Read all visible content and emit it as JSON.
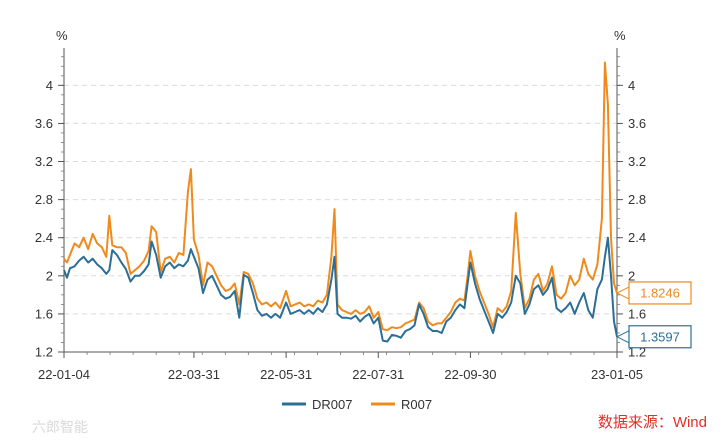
{
  "chart_data": {
    "type": "line",
    "y_unit_left": "%",
    "y_unit_right": "%",
    "ylim": [
      1.2,
      4.35
    ],
    "y_ticks": [
      "1.2",
      "1.6",
      "2",
      "2.4",
      "2.8",
      "3.2",
      "3.6",
      "4"
    ],
    "x_ticks": [
      "22-01-04",
      "22-03-31",
      "22-05-31",
      "22-07-31",
      "22-09-30",
      "23-01-05"
    ],
    "x_tick_positions": [
      "2022-01-04",
      "2022-03-31",
      "2022-05-31",
      "2022-07-31",
      "2022-09-30",
      "2023-01-05"
    ],
    "grid": true,
    "legend_position": "bottom",
    "series": [
      {
        "name": "DR007",
        "color": "#2b6f97",
        "last_value_label": "1.3597",
        "points": [
          [
            "2022-01-04",
            2.06
          ],
          [
            "2022-01-06",
            1.98
          ],
          [
            "2022-01-08",
            2.08
          ],
          [
            "2022-01-11",
            2.1
          ],
          [
            "2022-01-14",
            2.16
          ],
          [
            "2022-01-17",
            2.2
          ],
          [
            "2022-01-20",
            2.14
          ],
          [
            "2022-01-23",
            2.18
          ],
          [
            "2022-01-26",
            2.12
          ],
          [
            "2022-01-29",
            2.08
          ],
          [
            "2022-02-01",
            2.02
          ],
          [
            "2022-02-03",
            2.06
          ],
          [
            "2022-02-05",
            2.27
          ],
          [
            "2022-02-08",
            2.22
          ],
          [
            "2022-02-11",
            2.14
          ],
          [
            "2022-02-14",
            2.07
          ],
          [
            "2022-02-17",
            1.94
          ],
          [
            "2022-02-20",
            2.0
          ],
          [
            "2022-02-23",
            2.0
          ],
          [
            "2022-02-26",
            2.05
          ],
          [
            "2022-03-01",
            2.12
          ],
          [
            "2022-03-03",
            2.36
          ],
          [
            "2022-03-06",
            2.22
          ],
          [
            "2022-03-09",
            1.98
          ],
          [
            "2022-03-12",
            2.1
          ],
          [
            "2022-03-15",
            2.14
          ],
          [
            "2022-03-18",
            2.08
          ],
          [
            "2022-03-21",
            2.12
          ],
          [
            "2022-03-24",
            2.1
          ],
          [
            "2022-03-27",
            2.16
          ],
          [
            "2022-03-29",
            2.28
          ],
          [
            "2022-03-31",
            2.2
          ],
          [
            "2022-04-03",
            2.08
          ],
          [
            "2022-04-06",
            1.82
          ],
          [
            "2022-04-09",
            1.96
          ],
          [
            "2022-04-12",
            2.0
          ],
          [
            "2022-04-15",
            1.9
          ],
          [
            "2022-04-18",
            1.8
          ],
          [
            "2022-04-21",
            1.76
          ],
          [
            "2022-04-24",
            1.78
          ],
          [
            "2022-04-27",
            1.84
          ],
          [
            "2022-04-30",
            1.56
          ],
          [
            "2022-05-03",
            2.01
          ],
          [
            "2022-05-06",
            1.98
          ],
          [
            "2022-05-09",
            1.82
          ],
          [
            "2022-05-12",
            1.64
          ],
          [
            "2022-05-15",
            1.58
          ],
          [
            "2022-05-18",
            1.6
          ],
          [
            "2022-05-21",
            1.56
          ],
          [
            "2022-05-24",
            1.6
          ],
          [
            "2022-05-27",
            1.56
          ],
          [
            "2022-05-31",
            1.72
          ],
          [
            "2022-06-03",
            1.6
          ],
          [
            "2022-06-06",
            1.62
          ],
          [
            "2022-06-09",
            1.64
          ],
          [
            "2022-06-12",
            1.6
          ],
          [
            "2022-06-15",
            1.64
          ],
          [
            "2022-06-18",
            1.6
          ],
          [
            "2022-06-21",
            1.66
          ],
          [
            "2022-06-24",
            1.62
          ],
          [
            "2022-06-27",
            1.7
          ],
          [
            "2022-06-30",
            1.96
          ],
          [
            "2022-07-02",
            2.2
          ],
          [
            "2022-07-04",
            1.6
          ],
          [
            "2022-07-07",
            1.56
          ],
          [
            "2022-07-10",
            1.56
          ],
          [
            "2022-07-13",
            1.55
          ],
          [
            "2022-07-16",
            1.58
          ],
          [
            "2022-07-19",
            1.52
          ],
          [
            "2022-07-22",
            1.57
          ],
          [
            "2022-07-25",
            1.6
          ],
          [
            "2022-07-28",
            1.5
          ],
          [
            "2022-07-31",
            1.56
          ],
          [
            "2022-08-03",
            1.32
          ],
          [
            "2022-08-06",
            1.31
          ],
          [
            "2022-08-09",
            1.38
          ],
          [
            "2022-08-12",
            1.37
          ],
          [
            "2022-08-15",
            1.35
          ],
          [
            "2022-08-18",
            1.42
          ],
          [
            "2022-08-21",
            1.44
          ],
          [
            "2022-08-24",
            1.48
          ],
          [
            "2022-08-27",
            1.7
          ],
          [
            "2022-08-30",
            1.6
          ],
          [
            "2022-09-02",
            1.46
          ],
          [
            "2022-09-05",
            1.42
          ],
          [
            "2022-09-08",
            1.42
          ],
          [
            "2022-09-11",
            1.4
          ],
          [
            "2022-09-14",
            1.52
          ],
          [
            "2022-09-17",
            1.56
          ],
          [
            "2022-09-20",
            1.64
          ],
          [
            "2022-09-23",
            1.7
          ],
          [
            "2022-09-26",
            1.66
          ],
          [
            "2022-09-28",
            1.9
          ],
          [
            "2022-09-30",
            2.14
          ],
          [
            "2022-10-03",
            1.92
          ],
          [
            "2022-10-06",
            1.76
          ],
          [
            "2022-10-09",
            1.64
          ],
          [
            "2022-10-12",
            1.52
          ],
          [
            "2022-10-15",
            1.4
          ],
          [
            "2022-10-18",
            1.6
          ],
          [
            "2022-10-21",
            1.56
          ],
          [
            "2022-10-24",
            1.62
          ],
          [
            "2022-10-27",
            1.72
          ],
          [
            "2022-10-30",
            2.0
          ],
          [
            "2022-11-02",
            1.92
          ],
          [
            "2022-11-05",
            1.6
          ],
          [
            "2022-11-08",
            1.7
          ],
          [
            "2022-11-11",
            1.86
          ],
          [
            "2022-11-14",
            1.9
          ],
          [
            "2022-11-17",
            1.8
          ],
          [
            "2022-11-20",
            1.86
          ],
          [
            "2022-11-23",
            1.98
          ],
          [
            "2022-11-26",
            1.66
          ],
          [
            "2022-11-29",
            1.62
          ],
          [
            "2022-12-02",
            1.66
          ],
          [
            "2022-12-05",
            1.72
          ],
          [
            "2022-12-08",
            1.6
          ],
          [
            "2022-12-11",
            1.72
          ],
          [
            "2022-12-14",
            1.82
          ],
          [
            "2022-12-17",
            1.64
          ],
          [
            "2022-12-20",
            1.56
          ],
          [
            "2022-12-23",
            1.86
          ],
          [
            "2022-12-26",
            1.96
          ],
          [
            "2022-12-28",
            2.2
          ],
          [
            "2022-12-30",
            2.4
          ],
          [
            "2023-01-01",
            2.0
          ],
          [
            "2023-01-03",
            1.52
          ],
          [
            "2023-01-05",
            1.36
          ]
        ]
      },
      {
        "name": "R007",
        "color": "#ef8a1c",
        "last_value_label": "1.8246",
        "points": [
          [
            "2022-01-04",
            2.18
          ],
          [
            "2022-01-06",
            2.14
          ],
          [
            "2022-01-08",
            2.22
          ],
          [
            "2022-01-11",
            2.34
          ],
          [
            "2022-01-14",
            2.3
          ],
          [
            "2022-01-17",
            2.4
          ],
          [
            "2022-01-20",
            2.28
          ],
          [
            "2022-01-23",
            2.44
          ],
          [
            "2022-01-26",
            2.34
          ],
          [
            "2022-01-29",
            2.3
          ],
          [
            "2022-02-01",
            2.2
          ],
          [
            "2022-02-03",
            2.63
          ],
          [
            "2022-02-05",
            2.32
          ],
          [
            "2022-02-08",
            2.3
          ],
          [
            "2022-02-11",
            2.3
          ],
          [
            "2022-02-14",
            2.24
          ],
          [
            "2022-02-17",
            2.02
          ],
          [
            "2022-02-20",
            2.06
          ],
          [
            "2022-02-23",
            2.1
          ],
          [
            "2022-02-26",
            2.16
          ],
          [
            "2022-03-01",
            2.26
          ],
          [
            "2022-03-03",
            2.52
          ],
          [
            "2022-03-06",
            2.46
          ],
          [
            "2022-03-09",
            2.04
          ],
          [
            "2022-03-12",
            2.18
          ],
          [
            "2022-03-15",
            2.2
          ],
          [
            "2022-03-18",
            2.14
          ],
          [
            "2022-03-21",
            2.24
          ],
          [
            "2022-03-24",
            2.22
          ],
          [
            "2022-03-27",
            2.88
          ],
          [
            "2022-03-29",
            3.12
          ],
          [
            "2022-03-31",
            2.38
          ],
          [
            "2022-04-03",
            2.22
          ],
          [
            "2022-04-06",
            1.9
          ],
          [
            "2022-04-09",
            2.14
          ],
          [
            "2022-04-12",
            2.1
          ],
          [
            "2022-04-15",
            2.0
          ],
          [
            "2022-04-18",
            1.9
          ],
          [
            "2022-04-21",
            1.84
          ],
          [
            "2022-04-24",
            1.86
          ],
          [
            "2022-04-27",
            1.92
          ],
          [
            "2022-04-30",
            1.7
          ],
          [
            "2022-05-03",
            2.04
          ],
          [
            "2022-05-06",
            2.02
          ],
          [
            "2022-05-09",
            1.92
          ],
          [
            "2022-05-12",
            1.76
          ],
          [
            "2022-05-15",
            1.7
          ],
          [
            "2022-05-18",
            1.72
          ],
          [
            "2022-05-21",
            1.68
          ],
          [
            "2022-05-24",
            1.72
          ],
          [
            "2022-05-27",
            1.66
          ],
          [
            "2022-05-31",
            1.84
          ],
          [
            "2022-06-03",
            1.68
          ],
          [
            "2022-06-06",
            1.7
          ],
          [
            "2022-06-09",
            1.72
          ],
          [
            "2022-06-12",
            1.68
          ],
          [
            "2022-06-15",
            1.7
          ],
          [
            "2022-06-18",
            1.68
          ],
          [
            "2022-06-21",
            1.74
          ],
          [
            "2022-06-24",
            1.72
          ],
          [
            "2022-06-27",
            1.8
          ],
          [
            "2022-06-30",
            2.2
          ],
          [
            "2022-07-02",
            2.7
          ],
          [
            "2022-07-04",
            1.7
          ],
          [
            "2022-07-07",
            1.64
          ],
          [
            "2022-07-10",
            1.62
          ],
          [
            "2022-07-13",
            1.6
          ],
          [
            "2022-07-16",
            1.64
          ],
          [
            "2022-07-19",
            1.6
          ],
          [
            "2022-07-22",
            1.62
          ],
          [
            "2022-07-25",
            1.68
          ],
          [
            "2022-07-28",
            1.56
          ],
          [
            "2022-07-31",
            1.62
          ],
          [
            "2022-08-03",
            1.44
          ],
          [
            "2022-08-06",
            1.43
          ],
          [
            "2022-08-09",
            1.46
          ],
          [
            "2022-08-12",
            1.45
          ],
          [
            "2022-08-15",
            1.46
          ],
          [
            "2022-08-18",
            1.5
          ],
          [
            "2022-08-21",
            1.52
          ],
          [
            "2022-08-24",
            1.54
          ],
          [
            "2022-08-27",
            1.72
          ],
          [
            "2022-08-30",
            1.66
          ],
          [
            "2022-09-02",
            1.52
          ],
          [
            "2022-09-05",
            1.48
          ],
          [
            "2022-09-08",
            1.5
          ],
          [
            "2022-09-11",
            1.5
          ],
          [
            "2022-09-14",
            1.56
          ],
          [
            "2022-09-17",
            1.62
          ],
          [
            "2022-09-20",
            1.72
          ],
          [
            "2022-09-23",
            1.76
          ],
          [
            "2022-09-26",
            1.74
          ],
          [
            "2022-09-28",
            1.98
          ],
          [
            "2022-09-30",
            2.26
          ],
          [
            "2022-10-03",
            2.0
          ],
          [
            "2022-10-06",
            1.84
          ],
          [
            "2022-10-09",
            1.72
          ],
          [
            "2022-10-12",
            1.6
          ],
          [
            "2022-10-15",
            1.46
          ],
          [
            "2022-10-18",
            1.66
          ],
          [
            "2022-10-21",
            1.62
          ],
          [
            "2022-10-24",
            1.68
          ],
          [
            "2022-10-27",
            1.84
          ],
          [
            "2022-10-30",
            2.66
          ],
          [
            "2022-11-02",
            2.02
          ],
          [
            "2022-11-05",
            1.66
          ],
          [
            "2022-11-08",
            1.76
          ],
          [
            "2022-11-11",
            1.96
          ],
          [
            "2022-11-14",
            2.02
          ],
          [
            "2022-11-17",
            1.84
          ],
          [
            "2022-11-20",
            1.92
          ],
          [
            "2022-11-23",
            2.1
          ],
          [
            "2022-11-26",
            1.8
          ],
          [
            "2022-11-29",
            1.76
          ],
          [
            "2022-12-02",
            1.82
          ],
          [
            "2022-12-05",
            2.0
          ],
          [
            "2022-12-08",
            1.9
          ],
          [
            "2022-12-11",
            1.96
          ],
          [
            "2022-12-14",
            2.18
          ],
          [
            "2022-12-17",
            2.02
          ],
          [
            "2022-12-20",
            1.96
          ],
          [
            "2022-12-23",
            2.12
          ],
          [
            "2022-12-26",
            2.6
          ],
          [
            "2022-12-28",
            4.24
          ],
          [
            "2022-12-30",
            3.8
          ],
          [
            "2023-01-01",
            2.4
          ],
          [
            "2023-01-03",
            1.92
          ],
          [
            "2023-01-05",
            1.82
          ]
        ]
      }
    ]
  },
  "source_label": "数据来源：Wind",
  "watermark": "六郎智能"
}
